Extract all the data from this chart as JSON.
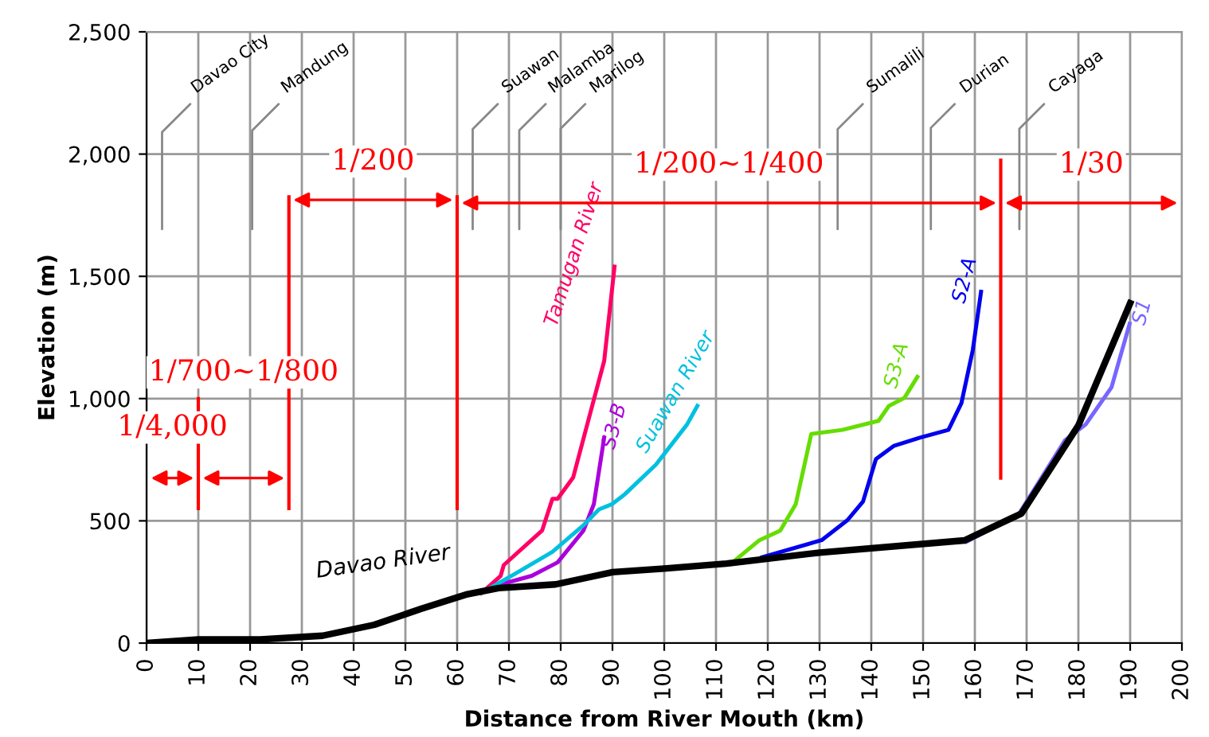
{
  "chart_data": {
    "type": "line",
    "xlabel": "Distance from River Mouth (km)",
    "ylabel": "Elevation (m)",
    "xlim": [
      0,
      200
    ],
    "xticks": [
      0,
      10,
      20,
      30,
      40,
      50,
      60,
      70,
      80,
      90,
      100,
      110,
      120,
      130,
      140,
      150,
      160,
      170,
      180,
      190,
      200
    ],
    "ylim": [
      0,
      2500
    ],
    "yticks": [
      0,
      {
        "value": 500,
        "label": "500"
      },
      {
        "value": 1000,
        "label": "1,000"
      },
      {
        "value": 1500,
        "label": "1,500"
      },
      {
        "value": 2000,
        "label": "2,000"
      },
      {
        "value": 2500,
        "label": "2,500"
      }
    ],
    "grid": true,
    "marker": "none",
    "line_style": "solid",
    "series": [
      {
        "name": "Davao River",
        "color": "#000000",
        "x": [
          0,
          10,
          22,
          34,
          44,
          53,
          62,
          68,
          79,
          90,
          100,
          112,
          130,
          158,
          169,
          180,
          190
        ],
        "values": [
          0,
          15,
          15,
          30,
          75,
          140,
          200,
          225,
          240,
          290,
          305,
          325,
          370,
          420,
          530,
          890,
          1390
        ]
      },
      {
        "name": "Tamugan River",
        "color": "#ff0066",
        "x": [
          64.7,
          68.4,
          69,
          76.4,
          78.4,
          79.4,
          82.4,
          85.4,
          88.4,
          90.4
        ],
        "values": [
          205,
          275,
          319,
          460,
          590,
          590,
          677,
          916,
          1154,
          1540
        ]
      },
      {
        "name": "S3-B",
        "color": "#aa00dd",
        "x": [
          64.7,
          68.4,
          74.4,
          79.4,
          84.4,
          86.4,
          88.4
        ],
        "values": [
          205,
          240,
          275,
          330,
          460,
          568,
          840
        ]
      },
      {
        "name": "Suawan River",
        "color": "#00c0e0",
        "x": [
          64.7,
          71.4,
          78.4,
          84.4,
          87.4,
          89.9,
          92.4,
          98.4,
          104.4,
          106.4
        ],
        "values": [
          205,
          286,
          373,
          482,
          547,
          568,
          609,
          730,
          894,
          970
        ]
      },
      {
        "name": "S3-A",
        "color": "#66dd00",
        "x": [
          112.9,
          118.4,
          122.4,
          125.4,
          128.4,
          134.4,
          141.4,
          143.4,
          146.4,
          148.9
        ],
        "values": [
          325,
          421,
          460,
          568,
          855,
          872,
          909,
          970,
          1003,
          1089
        ]
      },
      {
        "name": "S2-A",
        "color": "#0000ee",
        "x": [
          118.9,
          130.4,
          135.4,
          138.4,
          140.9,
          144.4,
          149.4,
          154.9,
          157.4,
          159.6,
          161.2
        ],
        "values": [
          351,
          421,
          503,
          579,
          753,
          807,
          840,
          872,
          981,
          1198,
          1437
        ]
      },
      {
        "name": "S1",
        "color": "#7766ff",
        "x": [
          158.4,
          168.4,
          177.4,
          181.4,
          186.4,
          189.9
        ],
        "values": [
          415,
          525,
          829,
          894,
          1046,
          1306
        ]
      }
    ],
    "ref_lines": [
      {
        "axis": "x",
        "value": 10,
        "color": "#ff0000"
      },
      {
        "axis": "x",
        "value": 27.5,
        "color": "#ff0000"
      },
      {
        "axis": "x",
        "value": 60,
        "color": "#ff0000"
      },
      {
        "axis": "x",
        "value": 165,
        "color": "#ff0000"
      },
      {
        "axis": "x",
        "value": 3,
        "label": "Davao City",
        "color": "#888888"
      },
      {
        "axis": "x",
        "value": 20.4,
        "label": "Mandung",
        "color": "#888888"
      },
      {
        "axis": "x",
        "value": 63,
        "label": "Suawan",
        "color": "#888888"
      },
      {
        "axis": "x",
        "value": 72,
        "label": "Malamba",
        "color": "#888888"
      },
      {
        "axis": "x",
        "value": 80,
        "label": "Marilog",
        "color": "#888888"
      },
      {
        "axis": "x",
        "value": 133.5,
        "label": "Sumalili",
        "color": "#888888"
      },
      {
        "axis": "x",
        "value": 151.5,
        "label": "Durian",
        "color": "#888888"
      },
      {
        "axis": "x",
        "value": 168.6,
        "label": "Cayaga",
        "color": "#888888"
      }
    ],
    "annotations": [
      "1/4,000",
      "1/700~1/800",
      "1/200",
      "1/200~1/400",
      "1/30"
    ]
  }
}
